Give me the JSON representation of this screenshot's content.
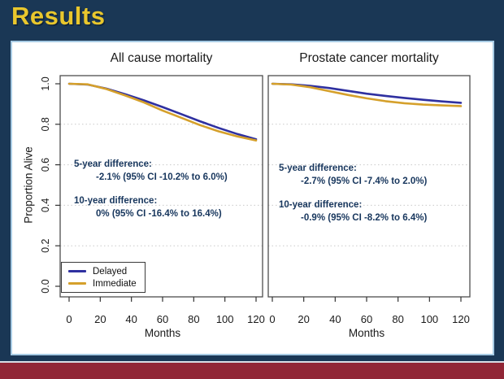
{
  "slide": {
    "title": "Results"
  },
  "colors": {
    "background_navy": "#1a3755",
    "title_gold": "#e9c72d",
    "panel_border_light_blue": "#a8cbe4",
    "bottom_bar_maroon": "#912636",
    "annotation_text_navy": "#17365d",
    "delayed_line_blue": "#2f30a0",
    "immediate_line_gold": "#d5a02b",
    "gridline_gray": "#c9c9c9",
    "plot_border_gray": "#4d4d4d"
  },
  "chart_data": [
    {
      "type": "line",
      "title": "All cause mortality",
      "xlabel": "Months",
      "ylabel": "Proportion Alive",
      "xlim": [
        0,
        120
      ],
      "ylim": [
        0.0,
        1.0
      ],
      "xticks": [
        0,
        20,
        40,
        60,
        80,
        100,
        120
      ],
      "yticks": [
        0.0,
        0.2,
        0.4,
        0.6,
        0.8,
        1.0
      ],
      "grid": "dotted horizontal gridlines at 0.2, 0.4, 0.6, 0.8",
      "x": [
        0,
        12,
        24,
        36,
        48,
        60,
        72,
        84,
        96,
        108,
        120
      ],
      "series": [
        {
          "name": "Delayed",
          "color": "#2f30a0",
          "values": [
            1.0,
            0.996,
            0.976,
            0.948,
            0.918,
            0.885,
            0.85,
            0.815,
            0.782,
            0.752,
            0.726
          ]
        },
        {
          "name": "Immediate",
          "color": "#d5a02b",
          "values": [
            1.0,
            0.997,
            0.974,
            0.942,
            0.908,
            0.868,
            0.832,
            0.796,
            0.765,
            0.74,
            0.72
          ]
        }
      ],
      "annotations": [
        {
          "label": "5-year difference:",
          "value": "-2.1% (95% CI -10.2% to 6.0%)"
        },
        {
          "label": "10-year difference:",
          "value": "0% (95% CI -16.4% to 16.4%)"
        }
      ],
      "legend": {
        "position": "bottom-left",
        "entries": [
          "Delayed",
          "Immediate"
        ]
      }
    },
    {
      "type": "line",
      "title": "Prostate cancer mortality",
      "xlabel": "Months",
      "ylabel": "Proportion Alive",
      "xlim": [
        0,
        120
      ],
      "ylim": [
        0.0,
        1.0
      ],
      "xticks": [
        0,
        20,
        40,
        60,
        80,
        100,
        120
      ],
      "yticks": [
        0.0,
        0.2,
        0.4,
        0.6,
        0.8,
        1.0
      ],
      "grid": "dotted horizontal gridlines at 0.2, 0.4, 0.6, 0.8",
      "x": [
        0,
        12,
        24,
        36,
        48,
        60,
        72,
        84,
        96,
        108,
        120
      ],
      "series": [
        {
          "name": "Delayed",
          "color": "#2f30a0",
          "values": [
            1.0,
            0.997,
            0.99,
            0.979,
            0.965,
            0.951,
            0.94,
            0.93,
            0.921,
            0.913,
            0.906
          ]
        },
        {
          "name": "Immediate",
          "color": "#d5a02b",
          "values": [
            1.0,
            0.996,
            0.983,
            0.964,
            0.945,
            0.928,
            0.914,
            0.904,
            0.897,
            0.893,
            0.89
          ]
        }
      ],
      "annotations": [
        {
          "label": "5-year difference:",
          "value": "-2.7% (95% CI -7.4% to 2.0%)"
        },
        {
          "label": "10-year difference:",
          "value": "-0.9% (95% CI -8.2% to 6.4%)"
        }
      ],
      "legend": {
        "position": "none",
        "entries": []
      }
    }
  ]
}
